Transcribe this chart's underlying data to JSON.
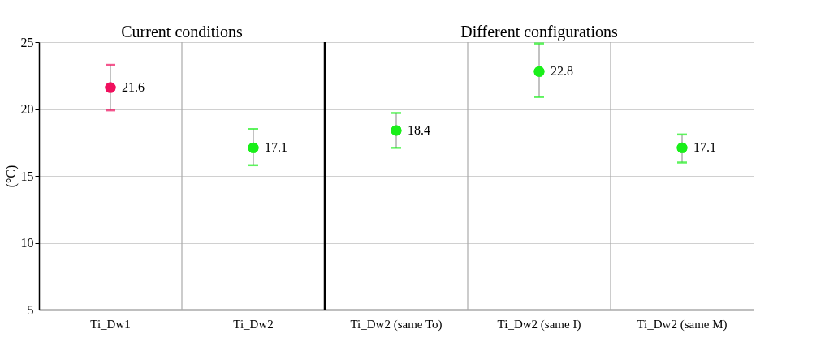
{
  "chart_data": {
    "type": "scatter",
    "ylabel": "(°C)",
    "annotations": [
      "Current conditions",
      "Different configurations"
    ],
    "categories": [
      "Ti_Dw1",
      "Ti_Dw2",
      "Ti_Dw2 (same To)",
      "Ti_Dw2 (same I)",
      "Ti_Dw2 (same M)"
    ],
    "values": [
      21.6,
      17.1,
      18.4,
      22.8,
      17.1
    ],
    "errors": [
      [
        19.9,
        23.3
      ],
      [
        15.8,
        18.5
      ],
      [
        17.1,
        19.7
      ],
      [
        20.9,
        24.9
      ],
      [
        16.0,
        18.1
      ]
    ],
    "colors": [
      "#f0105e",
      "#1aef1a",
      "#1aef1a",
      "#1aef1a",
      "#1aef1a"
    ],
    "data_labels": true,
    "marker": "circle",
    "grid": true,
    "ref_lines": [
      {
        "axis": "x",
        "value": "Ti_Dw2 (same To)",
        "color": "#000000"
      }
    ],
    "ylim": [
      5,
      25
    ],
    "yticks": [
      5,
      10,
      15,
      20,
      25
    ]
  }
}
